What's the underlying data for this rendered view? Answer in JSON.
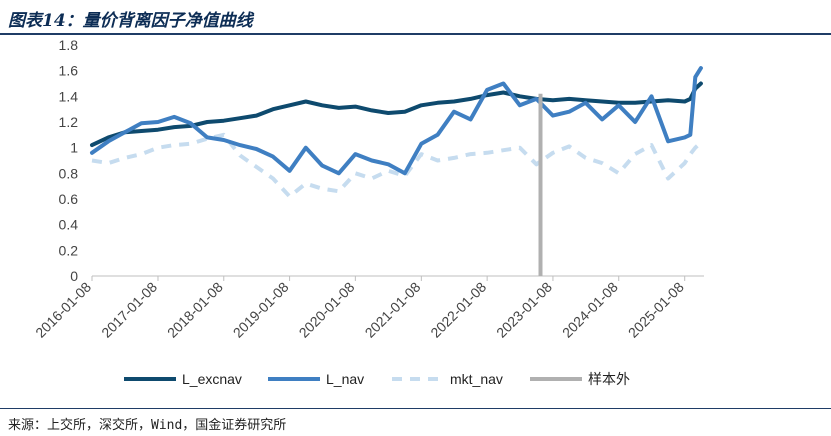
{
  "title": "图表14：量价背离因子净值曲线",
  "source": "来源：上交所，深交所，Wind，国金证券研究所",
  "chart_data": {
    "type": "line",
    "title": "图表14：量价背离因子净值曲线",
    "xlabel": "",
    "ylabel": "",
    "ylim": [
      0,
      1.8
    ],
    "yticks": [
      "0",
      "0.2",
      "0.4",
      "0.6",
      "0.8",
      "1",
      "1.2",
      "1.4",
      "1.6",
      "1.8"
    ],
    "xticks": [
      "2016-01-08",
      "2017-01-08",
      "2018-01-08",
      "2019-01-08",
      "2020-01-08",
      "2021-01-08",
      "2022-01-08",
      "2023-01-08",
      "2024-01-08",
      "2025-01-08"
    ],
    "x_range": [
      "2016-01-08",
      "2025-04-25"
    ],
    "grid": false,
    "legend_position": "bottom",
    "sample_split_date": "2022-10-31",
    "x": [
      "2016-01-08",
      "2016-04-08",
      "2016-07-08",
      "2016-10-08",
      "2017-01-08",
      "2017-04-08",
      "2017-07-08",
      "2017-10-08",
      "2018-01-08",
      "2018-04-08",
      "2018-07-08",
      "2018-10-08",
      "2019-01-08",
      "2019-04-08",
      "2019-07-08",
      "2019-10-08",
      "2020-01-08",
      "2020-04-08",
      "2020-07-08",
      "2020-10-08",
      "2021-01-08",
      "2021-04-08",
      "2021-07-08",
      "2021-10-08",
      "2022-01-08",
      "2022-04-08",
      "2022-07-08",
      "2022-10-08",
      "2023-01-08",
      "2023-04-08",
      "2023-07-08",
      "2023-10-08",
      "2024-01-08",
      "2024-04-08",
      "2024-07-08",
      "2024-10-08",
      "2025-01-08",
      "2025-02-08",
      "2025-03-08",
      "2025-04-08"
    ],
    "series": [
      {
        "name": "L_excnav",
        "color": "#0e4a6e",
        "style": "solid",
        "values": [
          1.02,
          1.08,
          1.12,
          1.13,
          1.14,
          1.16,
          1.17,
          1.2,
          1.21,
          1.23,
          1.25,
          1.3,
          1.33,
          1.36,
          1.33,
          1.31,
          1.32,
          1.29,
          1.27,
          1.28,
          1.33,
          1.35,
          1.36,
          1.38,
          1.41,
          1.43,
          1.4,
          1.38,
          1.37,
          1.38,
          1.37,
          1.36,
          1.35,
          1.35,
          1.36,
          1.37,
          1.36,
          1.38,
          1.46,
          1.5
        ]
      },
      {
        "name": "L_nav",
        "color": "#3f7fc2",
        "style": "solid",
        "values": [
          0.96,
          1.05,
          1.12,
          1.19,
          1.2,
          1.24,
          1.19,
          1.08,
          1.06,
          1.02,
          0.99,
          0.93,
          0.82,
          1.0,
          0.86,
          0.8,
          0.95,
          0.9,
          0.87,
          0.8,
          1.03,
          1.1,
          1.28,
          1.22,
          1.45,
          1.5,
          1.33,
          1.38,
          1.25,
          1.28,
          1.35,
          1.22,
          1.33,
          1.2,
          1.4,
          1.05,
          1.08,
          1.1,
          1.55,
          1.62
        ]
      },
      {
        "name": "mkt_nav",
        "color": "#c6dcef",
        "style": "dashed",
        "values": [
          0.9,
          0.88,
          0.92,
          0.95,
          1.0,
          1.02,
          1.03,
          1.07,
          1.1,
          0.94,
          0.85,
          0.76,
          0.62,
          0.72,
          0.68,
          0.66,
          0.8,
          0.76,
          0.82,
          0.78,
          0.95,
          0.9,
          0.92,
          0.95,
          0.96,
          0.98,
          1.0,
          0.87,
          0.96,
          1.01,
          0.92,
          0.88,
          0.8,
          0.95,
          1.02,
          0.76,
          0.88,
          0.95,
          1.0,
          1.04
        ]
      }
    ],
    "legend": [
      "L_excnav",
      "L_nav",
      "mkt_nav",
      "样本外"
    ],
    "marker_color": "#b0b0b0"
  }
}
